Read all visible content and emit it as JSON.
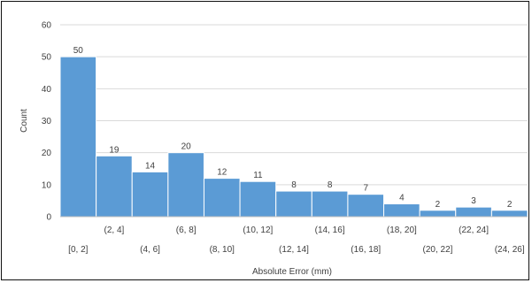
{
  "chart_data": {
    "type": "bar",
    "title": "",
    "xlabel": "Absolute Error (mm)",
    "ylabel": "Count",
    "ylim": [
      0,
      60
    ],
    "yticks": [
      0,
      10,
      20,
      30,
      40,
      50,
      60
    ],
    "grid": "horizontal",
    "legend": "none",
    "categories": [
      "[0, 2]",
      "(2, 4]",
      "(4, 6]",
      "(6, 8]",
      "(8, 10]",
      "(10, 12]",
      "(12, 14]",
      "(14, 16]",
      "(16, 18]",
      "(18, 20]",
      "(20, 22]",
      "(22, 24]",
      "(24, 26]"
    ],
    "values": [
      50,
      19,
      14,
      20,
      12,
      11,
      8,
      8,
      7,
      4,
      2,
      3,
      2
    ],
    "bar_color": "#5b9bd5",
    "bar_edge_color": "#ffffff",
    "grid_color": "#d9d9d9"
  }
}
